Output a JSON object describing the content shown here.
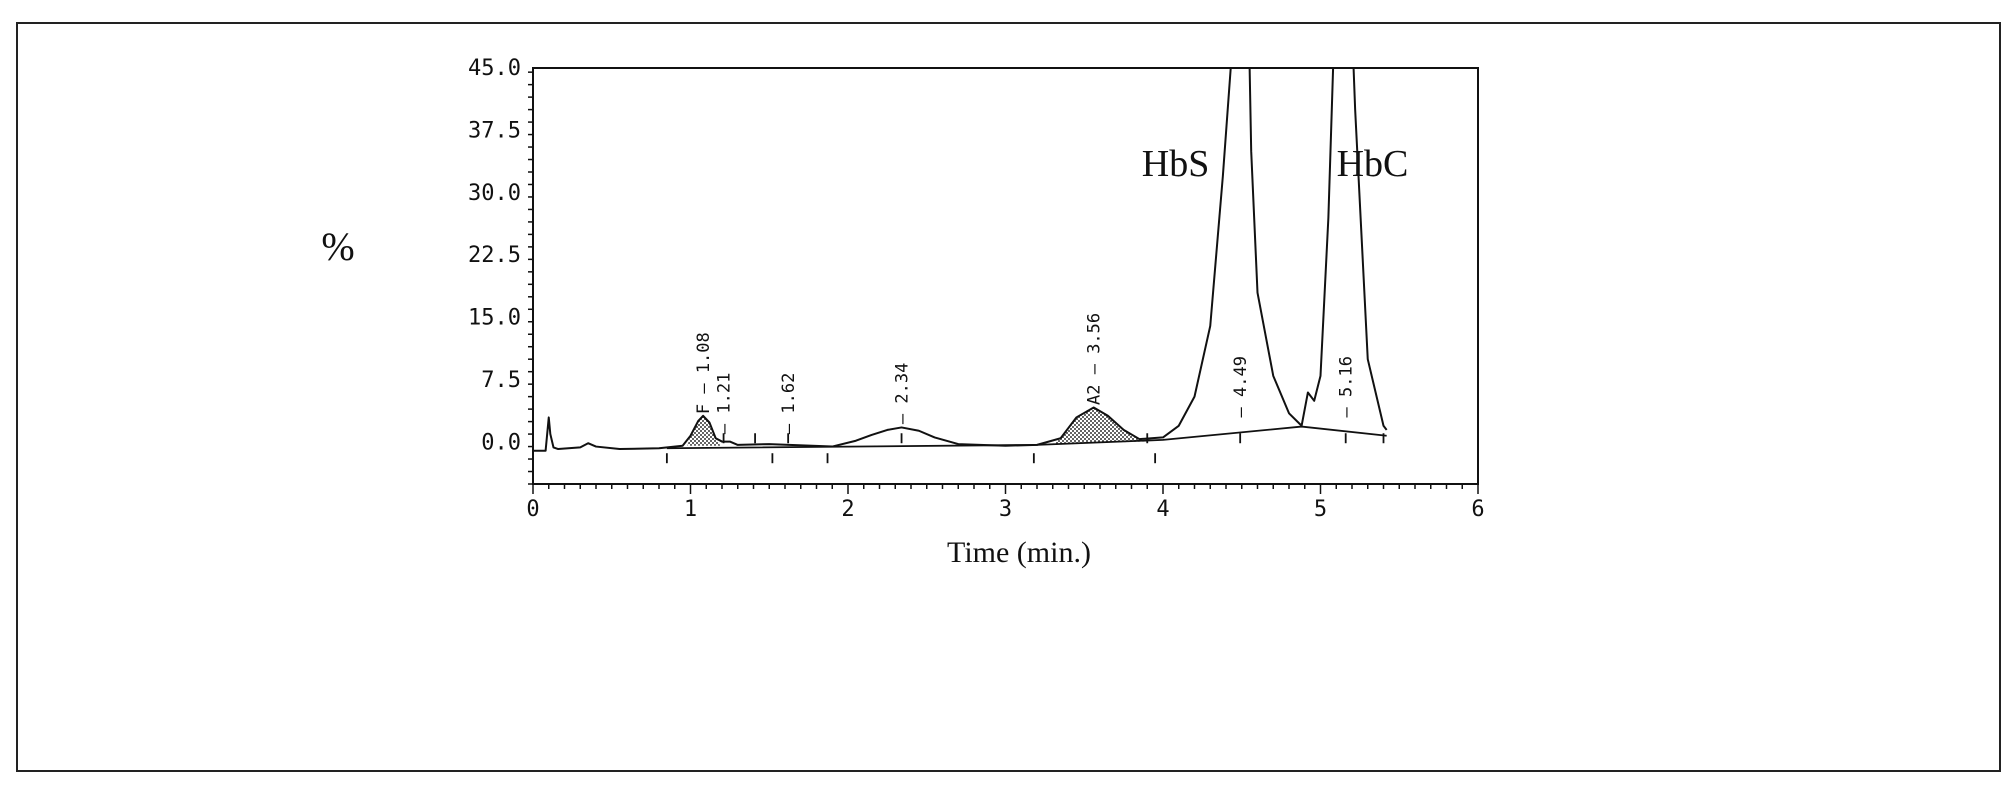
{
  "chart_data": {
    "type": "line",
    "title": "",
    "xlabel": "Time (min.)",
    "ylabel": "%",
    "xlim": [
      0,
      6
    ],
    "ylim": [
      -5,
      45
    ],
    "x_ticks": [
      "0",
      "1",
      "2",
      "3",
      "4",
      "5",
      "6"
    ],
    "y_ticks": [
      "0.0",
      "7.5",
      "15.0",
      "22.5",
      "30.0",
      "37.5",
      "45.0"
    ],
    "y_tick_values": [
      0,
      7.5,
      15,
      22.5,
      30,
      37.5,
      45
    ],
    "grid": false,
    "series": [
      {
        "x": [
          0.0,
          0.08,
          0.1,
          0.11,
          0.13,
          0.16,
          0.3,
          0.35,
          0.4,
          0.55,
          0.8,
          0.95,
          1.0,
          1.05,
          1.08,
          1.12,
          1.16,
          1.2,
          1.25,
          1.3,
          1.5,
          1.9,
          2.05,
          2.15,
          2.25,
          2.34,
          2.45,
          2.55,
          2.7,
          3.0,
          3.2,
          3.35,
          3.45,
          3.56,
          3.65,
          3.75,
          3.85,
          4.0,
          4.1,
          4.2,
          4.3,
          4.38,
          4.43,
          4.44,
          4.55,
          4.56,
          4.6,
          4.7,
          4.8,
          4.88,
          4.92,
          4.96,
          5.0,
          5.05,
          5.08,
          5.09,
          5.21,
          5.22,
          5.3,
          5.4,
          5.42
        ],
        "y": [
          -1.0,
          -1.0,
          3.0,
          1.0,
          -0.6,
          -0.8,
          -0.6,
          -0.1,
          -0.5,
          -0.8,
          -0.7,
          -0.4,
          0.8,
          2.6,
          3.2,
          2.4,
          0.5,
          0.1,
          0.1,
          -0.3,
          -0.2,
          -0.5,
          0.2,
          0.9,
          1.5,
          1.8,
          1.4,
          0.6,
          -0.2,
          -0.4,
          -0.3,
          0.5,
          3.0,
          4.2,
          3.2,
          1.5,
          0.4,
          0.6,
          2.0,
          5.5,
          14.0,
          32.0,
          45.0,
          45.0,
          45.0,
          35.0,
          18.0,
          8.0,
          3.5,
          2.0,
          6.0,
          5.0,
          8.0,
          27.0,
          45.0,
          45.0,
          45.0,
          40.0,
          10.0,
          2.0,
          1.5
        ]
      }
    ],
    "baseline": {
      "x": [
        0.85,
        3.2,
        4.0,
        4.88,
        5.42
      ],
      "y": [
        -0.7,
        -0.3,
        0.3,
        1.9,
        0.8
      ]
    },
    "shaded_peaks": [
      {
        "label": "F",
        "x": [
          0.98,
          1.0,
          1.05,
          1.08,
          1.12,
          1.16,
          1.19
        ],
        "y": [
          -0.4,
          0.8,
          2.6,
          3.2,
          2.4,
          0.5,
          -0.4
        ]
      },
      {
        "label": "A2",
        "x": [
          3.3,
          3.35,
          3.45,
          3.56,
          3.65,
          3.75,
          3.85,
          3.9
        ],
        "y": [
          -0.2,
          0.5,
          3.0,
          4.2,
          3.2,
          1.5,
          0.4,
          0.1
        ]
      }
    ],
    "peak_labels": [
      {
        "text": "F",
        "rt": "1.08",
        "x": 1.08,
        "y": 3.4
      },
      {
        "text": "",
        "rt": "1.21",
        "x": 1.21,
        "y": 1.0
      },
      {
        "text": "",
        "rt": "1.62",
        "x": 1.62,
        "y": 1.0
      },
      {
        "text": "",
        "rt": "2.34",
        "x": 2.34,
        "y": 2.2
      },
      {
        "text": "A2",
        "rt": "3.56",
        "x": 3.56,
        "y": 4.5
      },
      {
        "text": "",
        "rt": "4.49",
        "x": 4.49,
        "y": 3.0
      },
      {
        "text": "",
        "rt": "5.16",
        "x": 5.16,
        "y": 3.0
      }
    ],
    "boundary_marks_above": [
      1.21,
      1.41,
      1.62,
      2.34,
      3.9,
      4.49,
      5.16,
      5.4
    ],
    "boundary_marks_below": [
      0.85,
      1.52,
      1.87,
      3.18,
      3.95
    ],
    "annotations": [
      {
        "text": "HbS",
        "x": 4.08,
        "y": 32.0
      },
      {
        "text": "HbC",
        "x": 5.33,
        "y": 32.0
      }
    ]
  },
  "colors": {
    "line": "#111111",
    "shade": "#9a9a9a",
    "frame": "#222222"
  }
}
